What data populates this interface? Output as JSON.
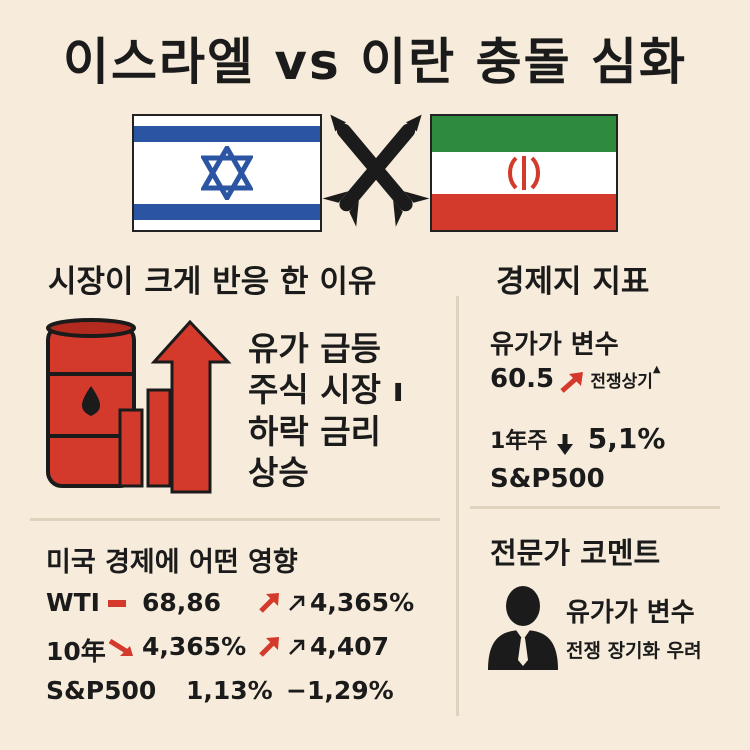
{
  "title": "이스라엘 vs 이란 충돌 심화",
  "left": {
    "heading": "시장이 크게 반응 한 이유",
    "reasons": [
      "유가 급등",
      "주식 시장",
      "하락 금리",
      "상승"
    ],
    "cursor_glyph": "ı"
  },
  "right": {
    "heading": "경제지 지표",
    "oil_label": "유가가 변수",
    "oil_value": "60.5",
    "oil_note": "전쟁상기",
    "oil_note_mark": "▲",
    "year_label": "1年주",
    "year_value": "5,1%",
    "sp_label": "S&P500"
  },
  "us": {
    "heading": "미국 경제에 어떤 영향",
    "rows": [
      {
        "label": "WTI",
        "v1": "68,86",
        "v2": "4,365%"
      },
      {
        "label": "10年",
        "v1": "4,365%",
        "v2": "4,407"
      },
      {
        "label": "S&P500",
        "v1": "1,13%",
        "v2": "−1,29%"
      }
    ]
  },
  "expert": {
    "heading": "전문가 코멘트",
    "line1": "유가가 변수",
    "line2": "전쟁 장기화 우려"
  },
  "colors": {
    "background": "#f7ecdb",
    "red": "#d33a2c",
    "green": "#2e8b3e",
    "blue": "#2b55a3",
    "dark": "#1b1b1b"
  }
}
